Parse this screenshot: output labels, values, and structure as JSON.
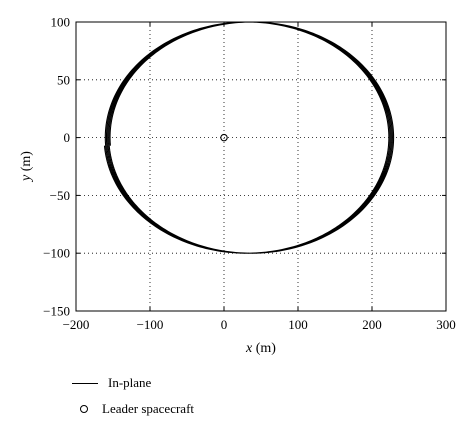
{
  "chart_data": {
    "type": "line",
    "xlabel_var": "x",
    "xlabel_unit": " (m)",
    "ylabel_var": "y",
    "ylabel_unit": " (m)",
    "xlim": [
      -200,
      300
    ],
    "ylim": [
      -150,
      100
    ],
    "xticks": [
      -200,
      -100,
      0,
      100,
      200,
      300
    ],
    "yticks": [
      -150,
      -100,
      -50,
      0,
      50,
      100
    ],
    "xtick_labels": [
      "−200",
      "−100",
      "0",
      "100",
      "200",
      "300"
    ],
    "ytick_labels": [
      "−150",
      "−100",
      "−50",
      "0",
      "50",
      "100"
    ],
    "grid": true,
    "grid_style": "dotted",
    "series": [
      {
        "name": "In-plane",
        "kind": "drifting-ellipse",
        "center_x_start": 30,
        "center_x_end": 38,
        "semi_axis_x": 192,
        "semi_axis_y": 100,
        "start_point": [
          -168,
          -7
        ],
        "loops": 5,
        "color": "#000000"
      },
      {
        "name": "Leader spacecraft",
        "kind": "marker",
        "marker": "circle",
        "x": [
          0
        ],
        "y": [
          0
        ],
        "color": "#000000"
      }
    ],
    "legend": {
      "placement": "bottom-left",
      "entries": [
        "In-plane",
        "Leader spacecraft"
      ]
    }
  }
}
